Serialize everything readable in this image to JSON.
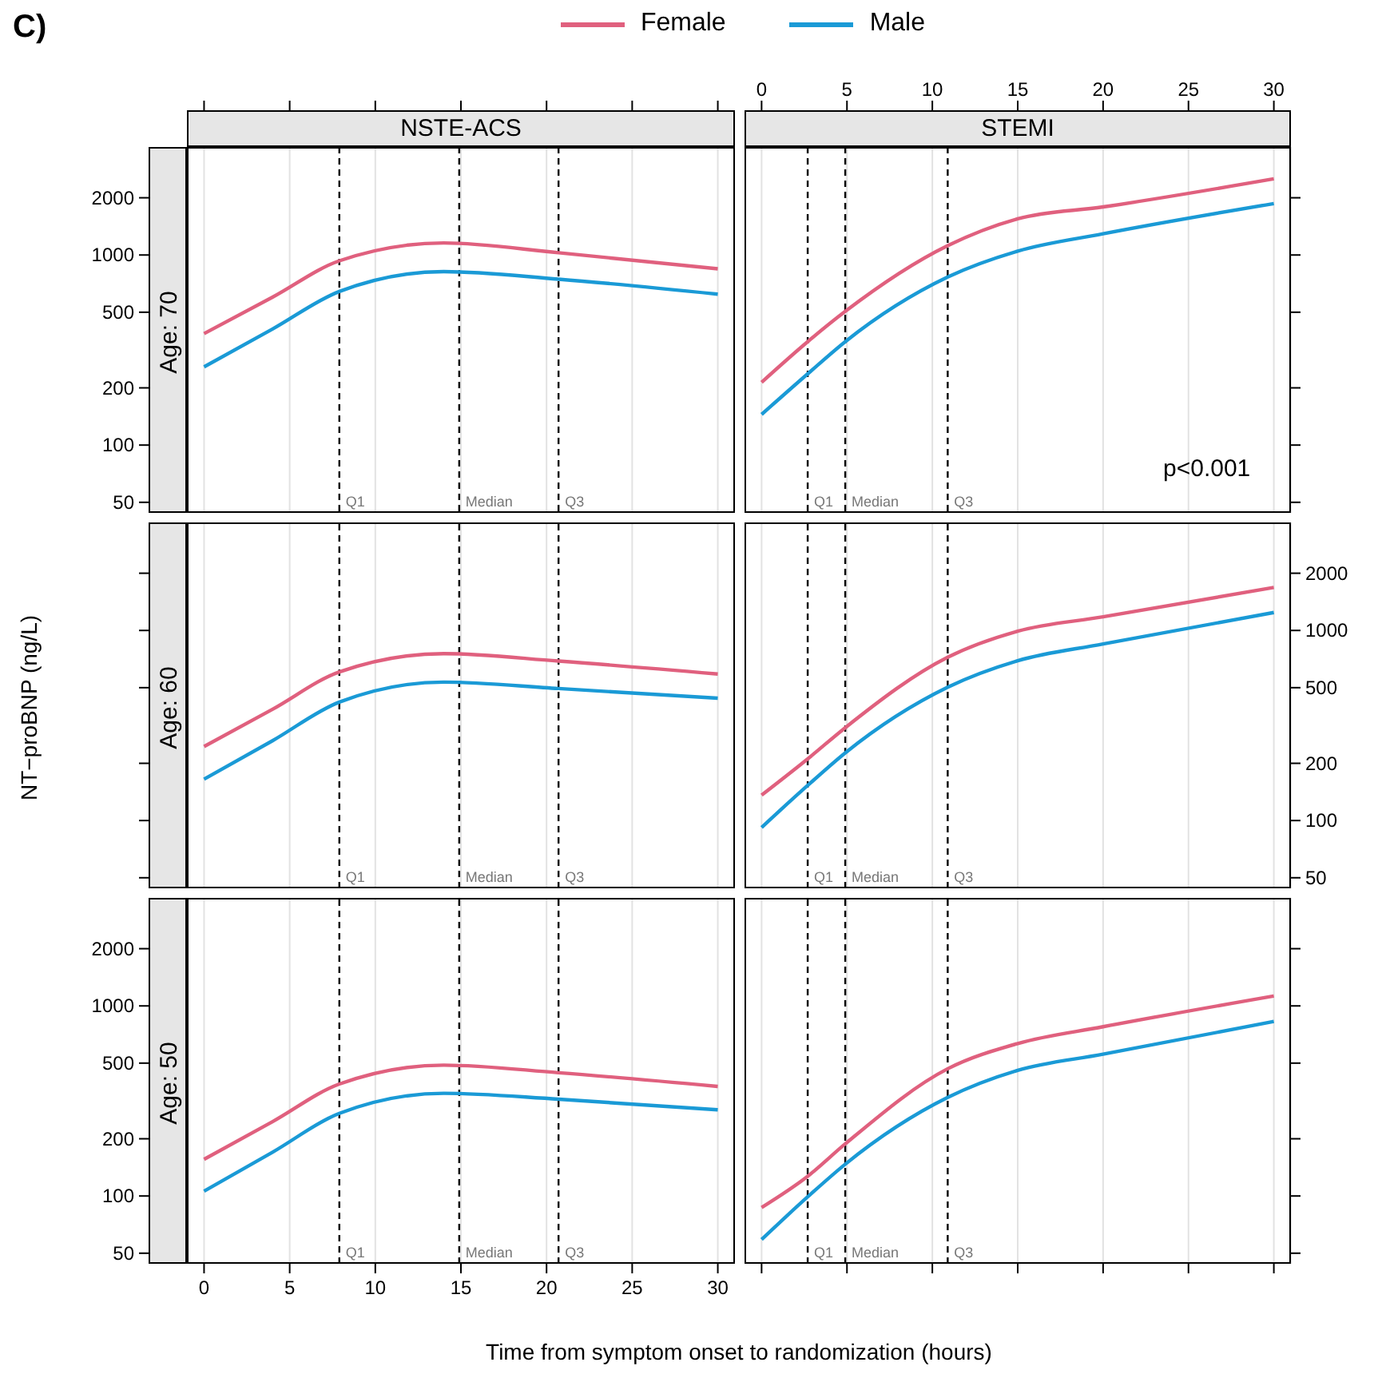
{
  "chart_data": [
    {
      "type": "line",
      "title": "NSTE-ACS",
      "subtitle": "Age: 70",
      "ylabel": "NT−proBNP (ng/L)",
      "annotations": [
        "C)"
      ],
      "legend": "top",
      "tick_labels": "y",
      "log": "y",
      "grid": "x",
      "x": [
        0,
        4,
        7.9,
        14,
        20.7,
        30
      ],
      "xlim": [
        -1,
        31
      ],
      "xticks": [
        0,
        5,
        10,
        15,
        20,
        25,
        30
      ],
      "ylim": [
        44,
        3700
      ],
      "yticks": [
        50,
        100,
        200,
        500,
        1000,
        2000
      ],
      "series": [
        {
          "name": "Female",
          "color": "#e0607e",
          "values": [
            386,
            600,
            932,
            1157,
            1028,
            846
          ]
        },
        {
          "name": "Male",
          "color": "#1a9ad6",
          "values": [
            258,
            408,
            643,
            818,
            746,
            622
          ]
        }
      ],
      "ref_lines": [
        {
          "axis": "x",
          "value": 7.9,
          "label": "Q1",
          "line_style": "dashed"
        },
        {
          "axis": "x",
          "value": 14.9,
          "label": "Median",
          "line_style": "dashed"
        },
        {
          "axis": "x",
          "value": 20.7,
          "label": "Q3",
          "line_style": "dashed"
        }
      ]
    },
    {
      "type": "line",
      "title": "STEMI",
      "annotations": [
        "p<0.001"
      ],
      "tick_labels": "x",
      "log": "y",
      "grid": "x",
      "x": [
        0,
        2.7,
        4.9,
        10.9,
        15,
        20,
        30
      ],
      "xlim": [
        -1,
        31
      ],
      "xticks": [
        0,
        5,
        10,
        15,
        20,
        25,
        30
      ],
      "ylim": [
        44,
        3700
      ],
      "yticks": [
        50,
        100,
        200,
        500,
        1000,
        2000
      ],
      "series": [
        {
          "color": "#e0607e",
          "values": [
            214,
            350,
            505,
            1120,
            1550,
            1790,
            2515
          ]
        },
        {
          "color": "#1a9ad6",
          "values": [
            145,
            237,
            350,
            766,
            1048,
            1293,
            1865
          ]
        }
      ],
      "ref_lines": [
        {
          "axis": "x",
          "value": 2.7,
          "label": "Q1",
          "line_style": "dashed"
        },
        {
          "axis": "x",
          "value": 4.9,
          "label": "Median",
          "line_style": "dashed"
        },
        {
          "axis": "x",
          "value": 10.9,
          "label": "Q3",
          "line_style": "dashed"
        }
      ]
    },
    {
      "type": "line",
      "subtitle": "Age: 60",
      "tick_labels": false,
      "log": "y",
      "grid": "x",
      "x": [
        0,
        4,
        7.9,
        14,
        20.7,
        30
      ],
      "xlim": [
        -1,
        31
      ],
      "xticks": [
        0,
        5,
        10,
        15,
        20,
        25,
        30
      ],
      "ylim": [
        44,
        3700
      ],
      "yticks": [
        50,
        100,
        200,
        500,
        1000,
        2000
      ],
      "series": [
        {
          "color": "#e0607e",
          "values": [
            245,
            385,
            605,
            755,
            690,
            590
          ]
        },
        {
          "color": "#1a9ad6",
          "values": [
            165,
            263,
            420,
            535,
            495,
            440
          ]
        }
      ],
      "ref_lines": [
        {
          "axis": "x",
          "value": 7.9,
          "label": "Q1",
          "line_style": "dashed"
        },
        {
          "axis": "x",
          "value": 14.9,
          "label": "Median",
          "line_style": "dashed"
        },
        {
          "axis": "x",
          "value": 20.7,
          "label": "Q3",
          "line_style": "dashed"
        }
      ]
    },
    {
      "type": "line",
      "tick_labels": "y",
      "log": "y",
      "grid": "x",
      "x": [
        0,
        2.7,
        4.9,
        10.9,
        15,
        20,
        30
      ],
      "xlim": [
        -1,
        31
      ],
      "xticks": [
        0,
        5,
        10,
        15,
        20,
        25,
        30
      ],
      "ylim": [
        44,
        3700
      ],
      "yticks": [
        50,
        100,
        200,
        500,
        1000,
        2000
      ],
      "series": [
        {
          "color": "#e0607e",
          "values": [
            136,
            211,
            308,
            723,
            991,
            1179,
            1684
          ]
        },
        {
          "color": "#1a9ad6",
          "values": [
            92,
            153,
            227,
            503,
            693,
            849,
            1243
          ]
        }
      ],
      "ref_lines": [
        {
          "axis": "x",
          "value": 2.7,
          "label": "Q1",
          "line_style": "dashed"
        },
        {
          "axis": "x",
          "value": 4.9,
          "label": "Median",
          "line_style": "dashed"
        },
        {
          "axis": "x",
          "value": 10.9,
          "label": "Q3",
          "line_style": "dashed"
        }
      ]
    },
    {
      "type": "line",
      "subtitle": "Age: 50",
      "xlabel": "Time from symptom onset to randomization (hours)",
      "log": "y",
      "grid": "x",
      "x": [
        0,
        4,
        7.9,
        14,
        20.7,
        30
      ],
      "xlim": [
        -1,
        31
      ],
      "xticks": [
        0,
        5,
        10,
        15,
        20,
        25,
        30
      ],
      "ylim": [
        44,
        3700
      ],
      "yticks": [
        50,
        100,
        200,
        500,
        1000,
        2000
      ],
      "series": [
        {
          "color": "#e0607e",
          "values": [
            156,
            246,
            388,
            488,
            445,
            377
          ]
        },
        {
          "color": "#1a9ad6",
          "values": [
            106,
            170,
            272,
            347,
            323,
            284
          ]
        }
      ],
      "ref_lines": [
        {
          "axis": "x",
          "value": 7.9,
          "label": "Q1",
          "line_style": "dashed"
        },
        {
          "axis": "x",
          "value": 14.9,
          "label": "Median",
          "line_style": "dashed"
        },
        {
          "axis": "x",
          "value": 20.7,
          "label": "Q3",
          "line_style": "dashed"
        }
      ]
    },
    {
      "type": "line",
      "tick_labels": false,
      "log": "y",
      "grid": "x",
      "x": [
        0,
        2.7,
        4.9,
        10.9,
        15,
        20,
        30
      ],
      "xlim": [
        -1,
        31
      ],
      "xticks": [
        0,
        5,
        10,
        15,
        20,
        25,
        30
      ],
      "ylim": [
        44,
        3700
      ],
      "yticks": [
        50,
        100,
        200,
        500,
        1000,
        2000
      ],
      "series": [
        {
          "color": "#e0607e",
          "values": [
            87,
            127,
            188,
            467,
            634,
            777,
            1127
          ]
        },
        {
          "color": "#1a9ad6",
          "values": [
            59,
            99,
            147,
            330,
            458,
            557,
            828
          ]
        }
      ],
      "ref_lines": [
        {
          "axis": "x",
          "value": 2.7,
          "label": "Q1",
          "line_style": "dashed"
        },
        {
          "axis": "x",
          "value": 4.9,
          "label": "Median",
          "line_style": "dashed"
        },
        {
          "axis": "x",
          "value": 10.9,
          "label": "Q3",
          "line_style": "dashed"
        }
      ]
    }
  ]
}
